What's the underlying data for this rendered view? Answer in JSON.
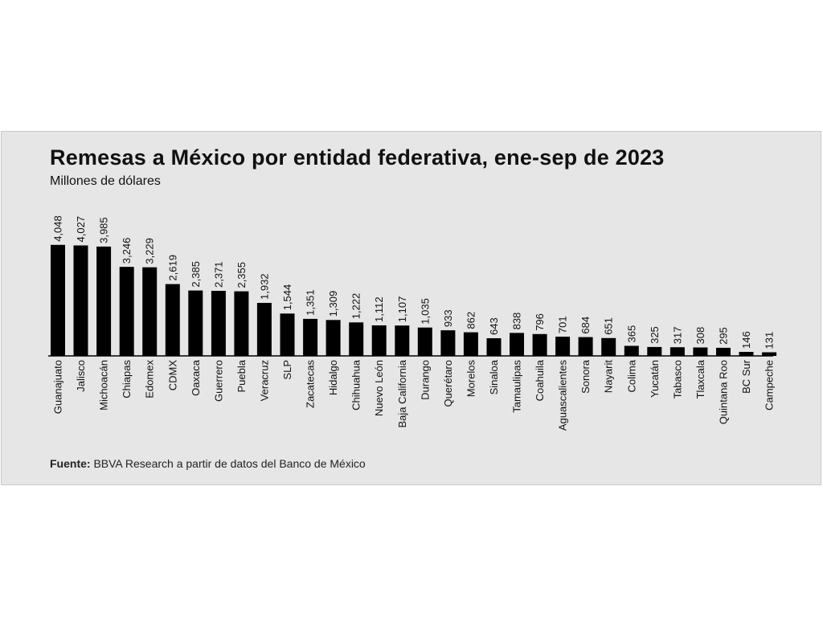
{
  "title": "Remesas a México por entidad federativa, ene-sep de 2023",
  "subtitle": "Millones de dólares",
  "source": {
    "prefix": "Fuente:",
    "text": "BBVA Research a partir de datos del Banco de México"
  },
  "colors": {
    "bar": "#000000",
    "background": "#e6e6e6",
    "text": "#111111"
  },
  "chart_data": {
    "type": "bar",
    "title": "Remesas a México por entidad federativa, ene-sep de 2023",
    "ylabel": "Millones de dólares",
    "ylim": [
      0,
      4100
    ],
    "grid": false,
    "legend": "none",
    "categories": [
      "Guanajuato",
      "Jalisco",
      "Michoacán",
      "Chiapas",
      "Edomex",
      "CDMX",
      "Oaxaca",
      "Guerrero",
      "Puebla",
      "Veracruz",
      "SLP",
      "Zacatecas",
      "Hidalgo",
      "Chihuahua",
      "Nuevo León",
      "Baja California",
      "Durango",
      "Querétaro",
      "Morelos",
      "Sinaloa",
      "Tamaulipas",
      "Coahuila",
      "Aguascalientes",
      "Sonora",
      "Nayarit",
      "Colima",
      "Yucatán",
      "Tabasco",
      "Tlaxcala",
      "Quintana Roo",
      "BC Sur",
      "Campeche"
    ],
    "values": [
      4048,
      4027,
      3985,
      3246,
      3229,
      2619,
      2385,
      2371,
      2355,
      1932,
      1544,
      1351,
      1309,
      1222,
      1112,
      1107,
      1035,
      933,
      862,
      643,
      838,
      796,
      701,
      684,
      651,
      365,
      325,
      317,
      308,
      295,
      146,
      131
    ],
    "value_labels": [
      "4,048",
      "4,027",
      "3,985",
      "3,246",
      "3,229",
      "2,619",
      "2,385",
      "2,371",
      "2,355",
      "1,932",
      "1,544",
      "1,351",
      "1,309",
      "1,222",
      "1,112",
      "1,107",
      "1,035",
      "933",
      "862",
      "643",
      "838",
      "796",
      "701",
      "684",
      "651",
      "365",
      "325",
      "317",
      "308",
      "295",
      "146",
      "131"
    ]
  }
}
